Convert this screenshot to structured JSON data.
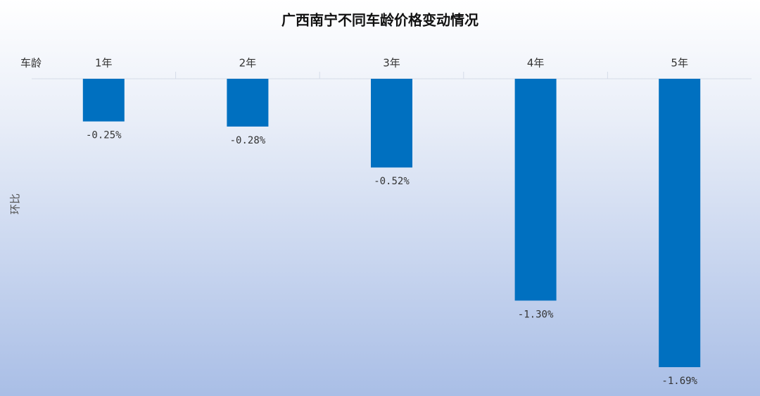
{
  "chart_data": {
    "type": "bar",
    "title": "广西南宁不同车龄价格变动情况",
    "x_label": "车龄",
    "y_label": "环比",
    "categories": [
      "1年",
      "2年",
      "3年",
      "4年",
      "5年"
    ],
    "values": [
      -0.25,
      -0.28,
      -0.52,
      -1.3,
      -1.69
    ],
    "value_labels": [
      "-0.25%",
      "-0.28%",
      "-0.52%",
      "-1.30%",
      "-1.69%"
    ],
    "color": "#0070c0"
  }
}
